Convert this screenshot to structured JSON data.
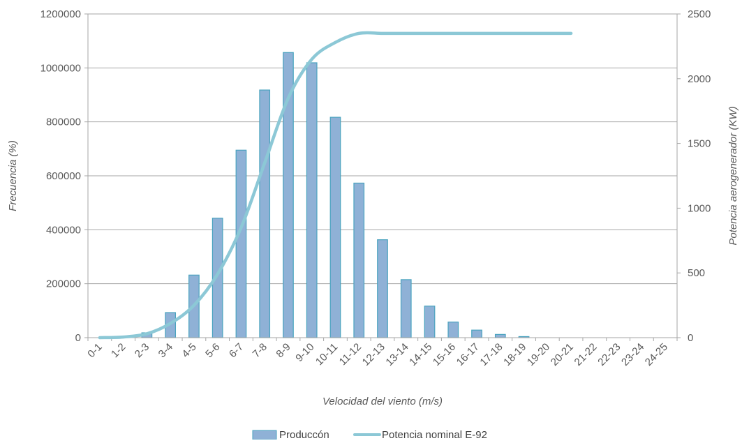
{
  "chart_data": {
    "type": "bar",
    "xlabel": "Velocidad del viento (m/s)",
    "ylabel_left": "Frecuencia (%)",
    "ylabel_right": "Potencia aerogenerador (KW)",
    "categories": [
      "0-1",
      "1-2",
      "2-3",
      "3-4",
      "4-5",
      "5-6",
      "6-7",
      "7-8",
      "8-9",
      "9-10",
      "10-11",
      "11-12",
      "12-13",
      "13-14",
      "14-15",
      "15-16",
      "16-17",
      "17-18",
      "18-19",
      "19-20",
      "20-21",
      "21-22",
      "22-23",
      "23-24",
      "24-25"
    ],
    "ylim_left": [
      0,
      1200000
    ],
    "yticks_left": [
      "0",
      "200000",
      "400000",
      "600000",
      "800000",
      "1000000",
      "1200000"
    ],
    "ylim_right": [
      0,
      2500
    ],
    "yticks_right": [
      "0",
      "500",
      "1000",
      "1500",
      "2000",
      "2500"
    ],
    "grid": true,
    "legend_position": "bottom",
    "series": [
      {
        "name": "Produccón",
        "type": "bar",
        "axis": "left",
        "color": "#8fb1d6",
        "edge_color": "#4aa3bf",
        "values": [
          0,
          0,
          18000,
          93000,
          232000,
          443000,
          695000,
          918000,
          1057000,
          1019000,
          817000,
          573000,
          363000,
          215000,
          117000,
          58000,
          28000,
          12000,
          4000,
          0,
          0,
          0,
          0,
          0,
          0
        ]
      },
      {
        "name": "Potencia nominal E-92",
        "type": "line",
        "axis": "right",
        "color": "#8cc8d6",
        "values": [
          0,
          5,
          30,
          110,
          250,
          490,
          850,
          1350,
          1850,
          2150,
          2280,
          2350,
          2350,
          2350,
          2350,
          2350,
          2350,
          2350,
          2350,
          2350,
          2350,
          null,
          null,
          null,
          null
        ]
      }
    ]
  }
}
